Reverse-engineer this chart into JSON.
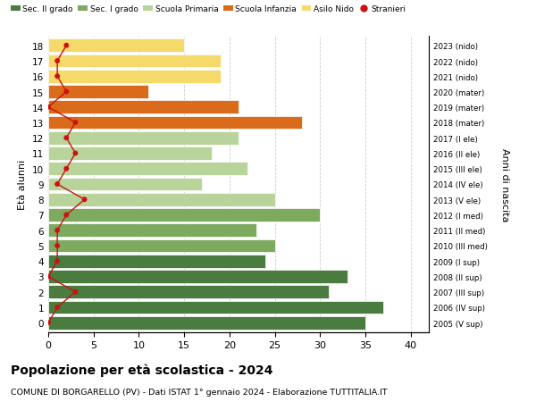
{
  "ages": [
    18,
    17,
    16,
    15,
    14,
    13,
    12,
    11,
    10,
    9,
    8,
    7,
    6,
    5,
    4,
    3,
    2,
    1,
    0
  ],
  "bar_values": [
    35,
    37,
    31,
    33,
    24,
    25,
    23,
    30,
    25,
    17,
    22,
    18,
    21,
    28,
    21,
    11,
    19,
    19,
    15
  ],
  "stranieri": [
    0,
    1,
    3,
    0,
    1,
    1,
    1,
    2,
    4,
    1,
    2,
    3,
    2,
    3,
    0,
    2,
    1,
    1,
    2
  ],
  "right_labels": [
    "2005 (V sup)",
    "2006 (IV sup)",
    "2007 (III sup)",
    "2008 (II sup)",
    "2009 (I sup)",
    "2010 (III med)",
    "2011 (II med)",
    "2012 (I med)",
    "2013 (V ele)",
    "2014 (IV ele)",
    "2015 (III ele)",
    "2016 (II ele)",
    "2017 (I ele)",
    "2018 (mater)",
    "2019 (mater)",
    "2020 (mater)",
    "2021 (nido)",
    "2022 (nido)",
    "2023 (nido)"
  ],
  "bar_colors": [
    "#4a7c3f",
    "#4a7c3f",
    "#4a7c3f",
    "#4a7c3f",
    "#4a7c3f",
    "#7daa5f",
    "#7daa5f",
    "#7daa5f",
    "#b8d49b",
    "#b8d49b",
    "#b8d49b",
    "#b8d49b",
    "#b8d49b",
    "#d96b1a",
    "#d96b1a",
    "#d96b1a",
    "#f5d96b",
    "#f5d96b",
    "#f5d96b"
  ],
  "legend_labels": [
    "Sec. II grado",
    "Sec. I grado",
    "Scuola Primaria",
    "Scuola Infanzia",
    "Asilo Nido",
    "Stranieri"
  ],
  "legend_colors": [
    "#4a7c3f",
    "#7daa5f",
    "#b8d49b",
    "#d96b1a",
    "#f5d96b",
    "#cc1111"
  ],
  "title": "Popolazione per età scolastica - 2024",
  "subtitle": "COMUNE DI BORGARELLO (PV) - Dati ISTAT 1° gennaio 2024 - Elaborazione TUTTITALIA.IT",
  "ylabel": "Età alunni",
  "right_ylabel": "Anni di nascita",
  "xlim": [
    0,
    42
  ],
  "background_color": "#ffffff",
  "grid_color": "#cccccc",
  "stranieri_color": "#cc1111",
  "stranieri_line_color": "#cc1111"
}
